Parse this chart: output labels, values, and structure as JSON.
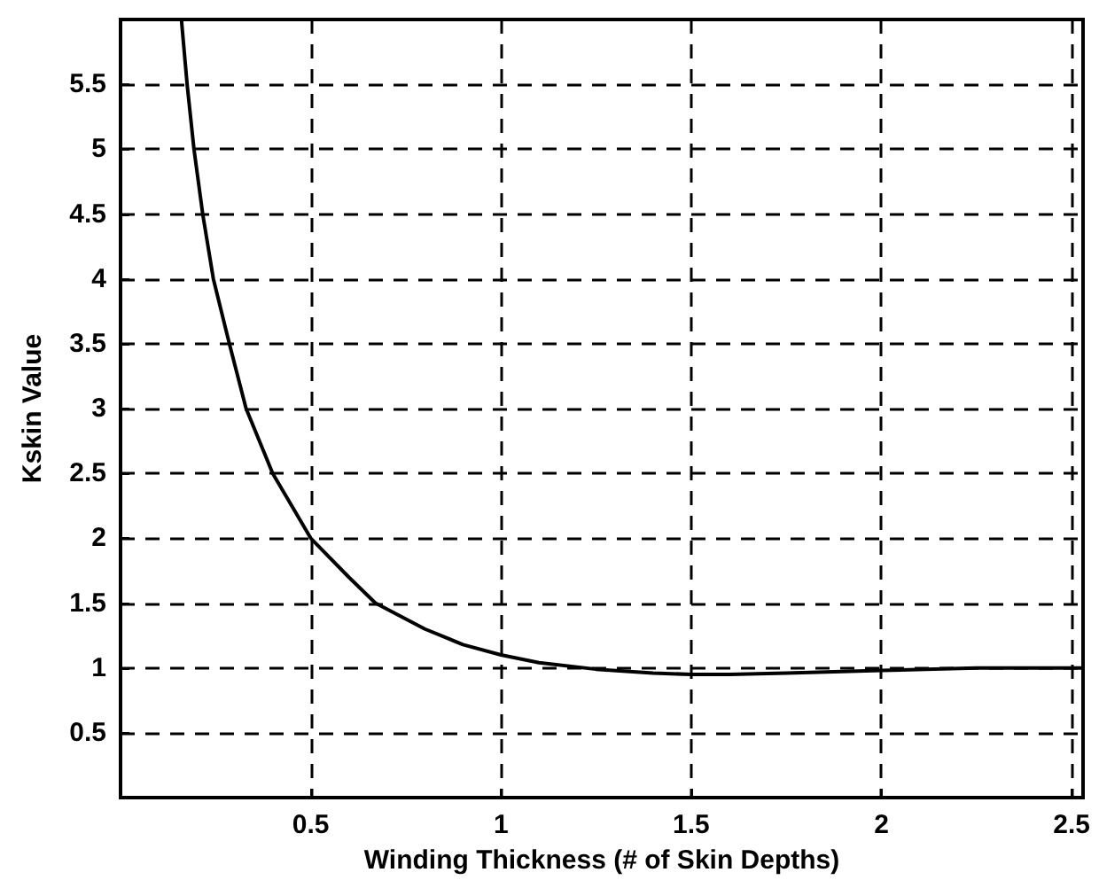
{
  "chart_data": {
    "type": "line",
    "xlabel": "Winding Thickness (# of Skin Depths)",
    "ylabel": "Kskin Value",
    "x": [
      0.16,
      0.175,
      0.193,
      0.216,
      0.244,
      0.286,
      0.33,
      0.4,
      0.5,
      0.6,
      0.67,
      0.8,
      0.9,
      1.0,
      1.1,
      1.25,
      1.4,
      1.5,
      1.6,
      1.75,
      2.0,
      2.25,
      2.53
    ],
    "series": [
      {
        "color": "#000000",
        "values": [
          6,
          5.5,
          5,
          4.5,
          4,
          3.5,
          3,
          2.5,
          2,
          1.7,
          1.5,
          1.3,
          1.18,
          1.1,
          1.04,
          0.99,
          0.96,
          0.95,
          0.95,
          0.96,
          0.98,
          1.0,
          1.0
        ]
      }
    ],
    "xlim": [
      0,
      2.53
    ],
    "ylim": [
      0,
      6
    ],
    "xticks": [
      0.5,
      1,
      1.5,
      2,
      2.5
    ],
    "yticks": [
      0.5,
      1,
      1.5,
      2,
      2.5,
      3,
      3.5,
      4,
      4.5,
      5,
      5.5
    ],
    "grid": true,
    "marker": "none",
    "line_style": "solid"
  }
}
